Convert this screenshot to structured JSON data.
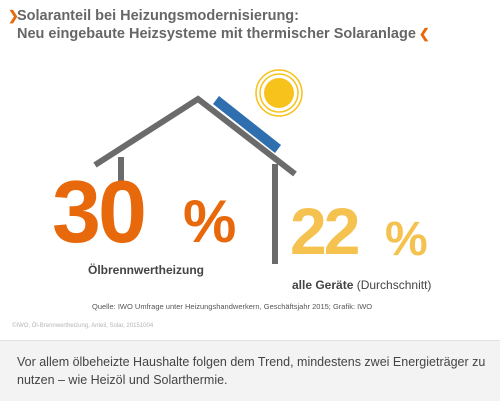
{
  "title": {
    "line1": "Solaranteil bei Heizungsmodernisierung:",
    "line2": "Neu eingebaute Heizsysteme mit thermischer Solaranlage"
  },
  "stats": [
    {
      "value": "30",
      "unit": "%",
      "label": "Ölbrennwertheizung",
      "color": "#e8690b"
    },
    {
      "value": "22",
      "unit": "%",
      "label_bold": "alle Geräte",
      "label_rest": " (Durchschnitt)",
      "color": "#f5c250"
    }
  ],
  "source": "Quelle: IWO Umfrage unter Heizungshandwerkern, Geschäftsjahr 2015; Grafik: IWO",
  "credit": "©IWO, Öl-Brennwertheizung, Anteil, Solar, 20151004",
  "caption": "Vor allem ölbeheizte Haushalte folgen dem Trend, mindestens zwei Energieträger zu nutzen – wie Heizöl und Solarthermie.",
  "colors": {
    "accent_orange": "#e8690b",
    "accent_yellow": "#f5c250",
    "roof_gray": "#6b6b6b",
    "solar_panel": "#2f6fb0",
    "sun": "#f7c21c"
  },
  "icons": [
    "house-icon",
    "solar-panel-icon",
    "sun-icon",
    "chevron-icon"
  ]
}
